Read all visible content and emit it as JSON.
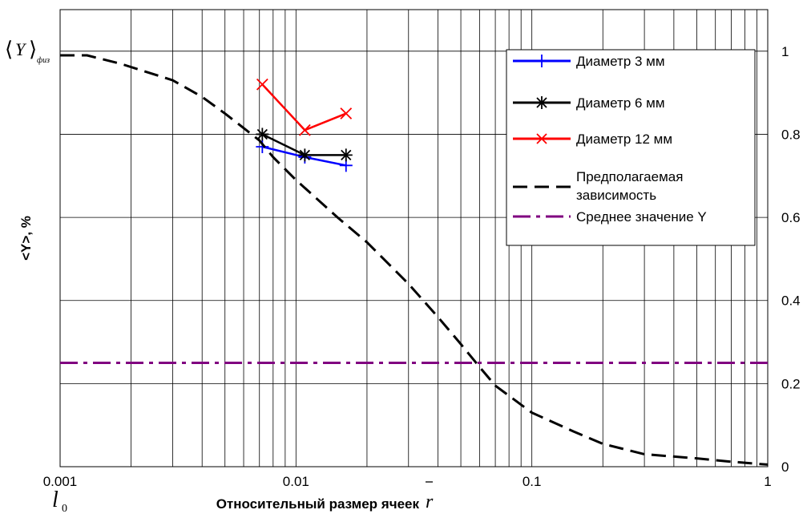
{
  "chart_data": {
    "type": "line",
    "x_scale": "log",
    "xlim": [
      0.001,
      1
    ],
    "ylim": [
      0,
      1.1
    ],
    "x_ticks": [
      "0.001",
      "0.01",
      "0.1",
      "1"
    ],
    "y_ticks_right": [
      "0",
      "0.2",
      "0.4",
      "0.6",
      "0.8",
      "1"
    ],
    "x_tick_values": [
      0.001,
      0.01,
      0.1,
      1
    ],
    "y_tick_values": [
      0,
      0.2,
      0.4,
      0.6,
      0.8,
      1
    ],
    "xlabel": "Относительный размер ячеек",
    "xlabel_symbol": "r",
    "ylabel": "<Y>, %",
    "y_annotation_main": "Y",
    "y_annotation_sub": "физ",
    "x_annotation_main": "l",
    "x_annotation_sub": "0",
    "grid": true,
    "legend_position": "top-right",
    "series": [
      {
        "name": "Диаметр 3 мм",
        "color": "#0000ff",
        "marker": "plus",
        "x": [
          0.0072,
          0.0109,
          0.0163
        ],
        "y": [
          0.77,
          0.745,
          0.725
        ]
      },
      {
        "name": "Диаметр 6 мм",
        "color": "#000000",
        "marker": "asterisk",
        "x": [
          0.0072,
          0.0109,
          0.0163
        ],
        "y": [
          0.8,
          0.75,
          0.75
        ]
      },
      {
        "name": "Диаметр 12 мм",
        "color": "#ff0000",
        "marker": "x",
        "x": [
          0.0072,
          0.0109,
          0.0163
        ],
        "y": [
          0.92,
          0.81,
          0.85
        ]
      },
      {
        "name": "Предполагаемая зависимость",
        "color": "#000000",
        "style": "dashed",
        "x": [
          0.001,
          0.0013,
          0.0018,
          0.003,
          0.004,
          0.005,
          0.006,
          0.007,
          0.008,
          0.01,
          0.015,
          0.02,
          0.03,
          0.04,
          0.05,
          0.06,
          0.07,
          0.1,
          0.15,
          0.2,
          0.3,
          0.5,
          0.7,
          1.0
        ],
        "y": [
          0.99,
          0.99,
          0.97,
          0.93,
          0.89,
          0.85,
          0.815,
          0.785,
          0.745,
          0.69,
          0.6,
          0.54,
          0.44,
          0.36,
          0.295,
          0.24,
          0.195,
          0.13,
          0.085,
          0.055,
          0.03,
          0.02,
          0.012,
          0.005
        ]
      },
      {
        "name": "Среднее значение Y",
        "color": "#800080",
        "style": "dashdot",
        "x": [
          0.001,
          1
        ],
        "y": [
          0.25,
          0.25
        ]
      }
    ]
  }
}
